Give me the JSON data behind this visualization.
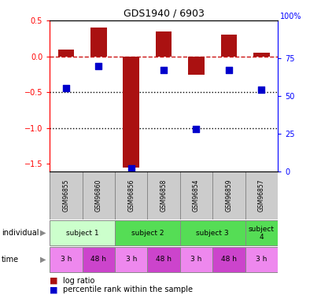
{
  "title": "GDS1940 / 6903",
  "samples": [
    "GSM96855",
    "GSM96860",
    "GSM96856",
    "GSM96858",
    "GSM96854",
    "GSM96859",
    "GSM96857"
  ],
  "log_ratio": [
    0.1,
    0.4,
    -1.55,
    0.35,
    -0.25,
    0.3,
    0.05
  ],
  "percentile_rank": [
    55,
    70,
    2,
    67,
    28,
    67,
    54
  ],
  "bar_color": "#AA1111",
  "dot_color": "#0000CC",
  "ylim_left": [
    -1.6,
    0.5
  ],
  "ylim_right": [
    0,
    100
  ],
  "yticks_left": [
    0.5,
    0.0,
    -0.5,
    -1.0,
    -1.5
  ],
  "yticks_right": [
    100,
    75,
    50,
    25,
    0
  ],
  "hline_color": "#CC1111",
  "dotted_lines": [
    -0.5,
    -1.0
  ],
  "ind_data": [
    {
      "label": "subject 1",
      "start": 0,
      "end": 2,
      "color": "#CCFFCC"
    },
    {
      "label": "subject 2",
      "start": 2,
      "end": 4,
      "color": "#55DD55"
    },
    {
      "label": "subject 3",
      "start": 4,
      "end": 6,
      "color": "#55DD55"
    },
    {
      "label": "subject\n4",
      "start": 6,
      "end": 7,
      "color": "#55DD55"
    }
  ],
  "times": [
    {
      "label": "3 h",
      "color": "#EE88EE"
    },
    {
      "label": "48 h",
      "color": "#CC44CC"
    },
    {
      "label": "3 h",
      "color": "#EE88EE"
    },
    {
      "label": "48 h",
      "color": "#CC44CC"
    },
    {
      "label": "3 h",
      "color": "#EE88EE"
    },
    {
      "label": "48 h",
      "color": "#CC44CC"
    },
    {
      "label": "3 h",
      "color": "#EE88EE"
    }
  ],
  "bar_width": 0.5,
  "dot_size": 40,
  "gsm_bg": "#CCCCCC",
  "gsm_edge": "#888888"
}
